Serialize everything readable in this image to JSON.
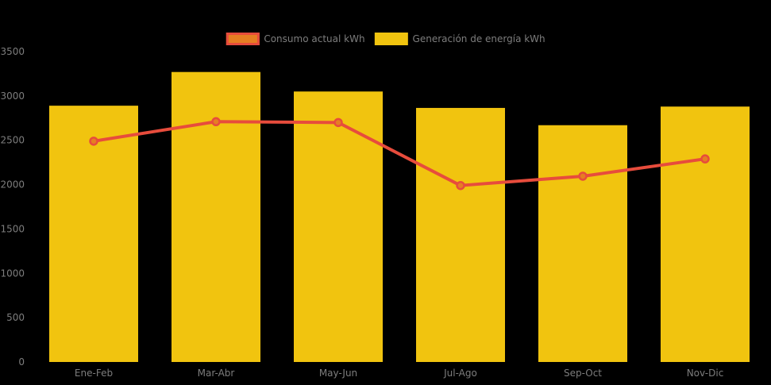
{
  "chart_data": {
    "type": "bar",
    "subtype": "bar-and-line combo",
    "title": "",
    "categories": [
      "Ene-Feb",
      "Mar-Abr",
      "May-Jun",
      "Jul-Ago",
      "Sep-Oct",
      "Nov-Dic"
    ],
    "series": [
      {
        "name": "Consumo actual kWh",
        "type": "line",
        "values": [
          2490,
          2710,
          2700,
          1990,
          2095,
          2290
        ],
        "line_color": "#E74C3C",
        "marker_fill": "#E67E22"
      },
      {
        "name": "Generación de energía kWh",
        "type": "bar",
        "values": [
          2890,
          3270,
          3050,
          2865,
          2670,
          2880
        ],
        "bar_color": "#F1C40F"
      }
    ],
    "xlabel": "",
    "ylabel": "",
    "ylim": [
      0,
      3500
    ],
    "yticks": [
      0,
      500,
      1000,
      1500,
      2000,
      2500,
      3000,
      3500
    ],
    "grid": false,
    "axis_lines": false,
    "legend_position": "top-center",
    "background_color": "#000000",
    "label_color": "#7D7D7D"
  }
}
